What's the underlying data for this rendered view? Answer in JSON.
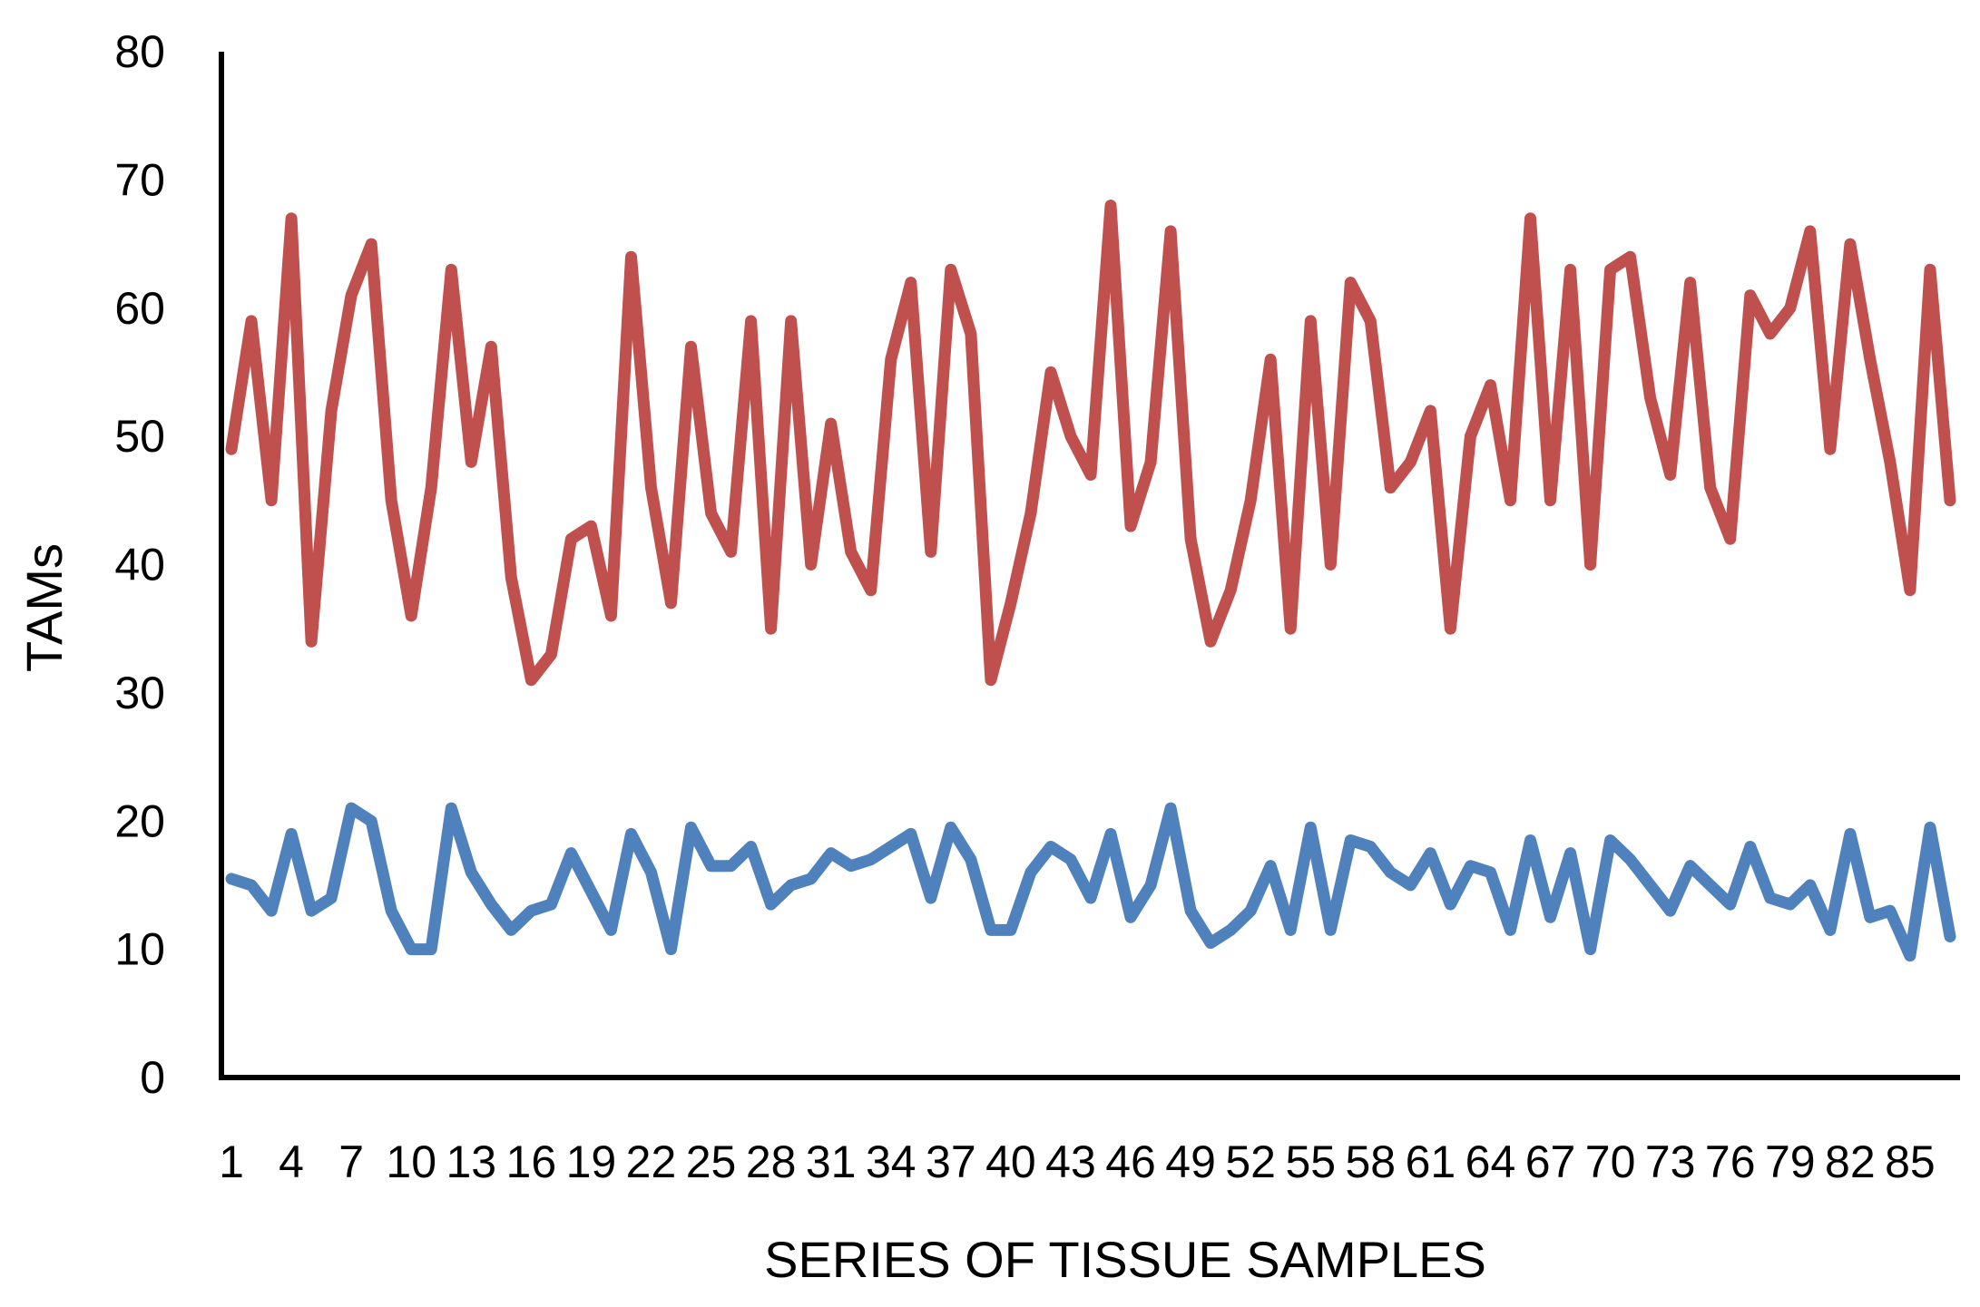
{
  "chart_data": {
    "type": "line",
    "title": "",
    "xlabel": "SERIES OF TISSUE SAMPLES",
    "ylabel": "TAMs",
    "ylim": [
      0,
      80
    ],
    "yticks": [
      0,
      10,
      20,
      30,
      40,
      50,
      60,
      70,
      80
    ],
    "x_tick_labels": [
      "1",
      "4",
      "7",
      "10",
      "13",
      "16",
      "19",
      "22",
      "25",
      "28",
      "31",
      "34",
      "37",
      "40",
      "43",
      "46",
      "49",
      "52",
      "55",
      "58",
      "61",
      "64",
      "67",
      "70",
      "73",
      "76",
      "79",
      "82",
      "85"
    ],
    "grid": false,
    "legend": "none",
    "series": [
      {
        "color": "#c0504d",
        "values": [
          49,
          59,
          45,
          67,
          34,
          52,
          61,
          65,
          45,
          36,
          46,
          63,
          48,
          57,
          39,
          31,
          33,
          42,
          43,
          36,
          64,
          46,
          37,
          57,
          44,
          41,
          59,
          35,
          59,
          40,
          51,
          41,
          38,
          56,
          62,
          41,
          63,
          58,
          31,
          37,
          44,
          55,
          50,
          47,
          68,
          43,
          48,
          66,
          42,
          34,
          38,
          45,
          56,
          35,
          59,
          40,
          62,
          59,
          46,
          48,
          52,
          35,
          50,
          54,
          45,
          67,
          45,
          63,
          40,
          63,
          64,
          53,
          47,
          62,
          46,
          42,
          61,
          58,
          60,
          66,
          49,
          65,
          56,
          48,
          38,
          63,
          45
        ]
      },
      {
        "color": "#4f81bd",
        "values": [
          15.5,
          15,
          13,
          19,
          13,
          14,
          21,
          20,
          13,
          10,
          10,
          21,
          16,
          13.5,
          11.5,
          13,
          13.5,
          17.5,
          14.5,
          11.5,
          19,
          16,
          10,
          19.5,
          16.5,
          16.5,
          18,
          13.5,
          15,
          15.5,
          17.5,
          16.5,
          17,
          18,
          19,
          14,
          19.5,
          17,
          11.5,
          11.5,
          16,
          18,
          17,
          14,
          19,
          12.5,
          15,
          21,
          13,
          10.5,
          11.5,
          13,
          16.5,
          11.5,
          19.5,
          11.5,
          18.5,
          18,
          16,
          15,
          17.5,
          13.5,
          16.5,
          16,
          11.5,
          18.5,
          12.5,
          17.5,
          10,
          18.5,
          17,
          15,
          13,
          16.5,
          15,
          13.5,
          18,
          14,
          13.5,
          15,
          11.5,
          19,
          12.5,
          13,
          9.5,
          19.5,
          11
        ]
      }
    ]
  }
}
